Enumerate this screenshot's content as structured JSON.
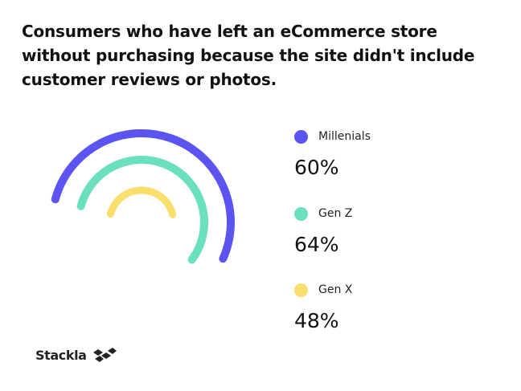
{
  "title": "Consumers who have left an eCommerce store\nwithout  purchasing because the site didn't include\ncustomer  reviews or photos.",
  "chart_data": {
    "type": "radial_arc",
    "title": "Consumers who have left an eCommerce store without purchasing because the site didn't include customer reviews or photos.",
    "unit": "%",
    "series": [
      {
        "name": "Millenials",
        "value": 60,
        "label": "60%",
        "color": "#5b54f0"
      },
      {
        "name": "Gen Z",
        "value": 64,
        "label": "64%",
        "color": "#6be0be"
      },
      {
        "name": "Gen X",
        "value": 48,
        "label": "48%",
        "color": "#fbdf6c"
      }
    ],
    "legend_position": "right"
  },
  "brand": {
    "name": "Stackla",
    "icon": "stackla-logo-mark"
  }
}
